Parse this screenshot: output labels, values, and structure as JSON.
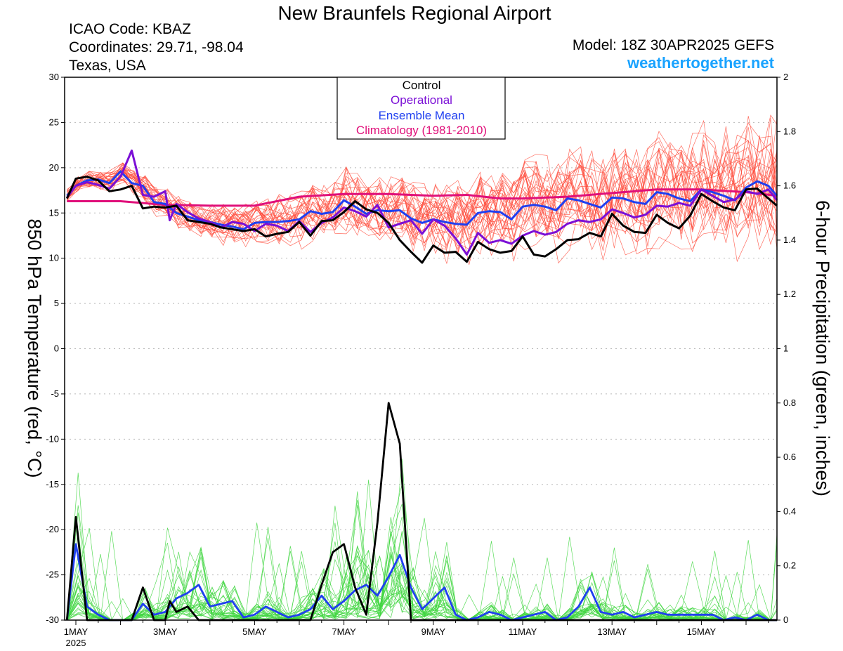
{
  "header": {
    "title": "New Braunfels Regional Airport",
    "icao": "ICAO Code: KBAZ",
    "coords": "Coordinates: 29.71, -98.04",
    "location": "Texas, USA",
    "model": "Model: 18Z 30APR2025 GEFS",
    "site": "weathertogether.net"
  },
  "colors": {
    "control": "#000000",
    "operational": "#7b0fd6",
    "ensemble_mean": "#1f3ff0",
    "climatology": "#e0107a",
    "members_temp": "#ff4a3a",
    "members_precip": "#3fd63f",
    "site": "#1aa3ff",
    "grid": "#b8b8b8"
  },
  "chart_data": {
    "type": "line",
    "xlabel": "",
    "ylabel_left": "850 hPa Temperature (red, °C)",
    "ylabel_right": "6-hour Precipitation (green, inches)",
    "y_left_lim": [
      -30,
      30
    ],
    "y_left_ticks": [
      30,
      25,
      20,
      15,
      10,
      5,
      0,
      -5,
      -10,
      -15,
      -20,
      -25,
      -30
    ],
    "y_right_lim": [
      0,
      2
    ],
    "y_right_ticks": [
      "2",
      "1.8",
      "1.6",
      "1.4",
      "1.2",
      "1",
      "0.8",
      "0.6",
      "0.4",
      "0.2",
      "0"
    ],
    "x_lim_days": [
      0.8,
      16.8
    ],
    "x_ticks": [
      {
        "day": 1,
        "label": "1MAY",
        "sub": "2025"
      },
      {
        "day": 3,
        "label": "3MAY"
      },
      {
        "day": 5,
        "label": "5MAY"
      },
      {
        "day": 7,
        "label": "7MAY"
      },
      {
        "day": 9,
        "label": "9MAY"
      },
      {
        "day": 11,
        "label": "11MAY"
      },
      {
        "day": 13,
        "label": "13MAY"
      },
      {
        "day": 15,
        "label": "15MAY"
      }
    ],
    "grid": "dotted horizontal",
    "legend": {
      "placement": "top-center",
      "entries": [
        "Control",
        "Operational",
        "Ensemble Mean",
        "Climatology (1981-2010)"
      ]
    },
    "series": {
      "temp_control": [
        [
          0.8,
          16.6
        ],
        [
          1.0,
          18.8
        ],
        [
          1.25,
          19.0
        ],
        [
          1.5,
          18.6
        ],
        [
          1.75,
          17.4
        ],
        [
          2.0,
          17.6
        ],
        [
          2.25,
          18.0
        ],
        [
          2.5,
          15.5
        ],
        [
          2.75,
          15.7
        ],
        [
          3.0,
          15.6
        ],
        [
          3.25,
          15.8
        ],
        [
          3.5,
          14.2
        ],
        [
          3.75,
          14.0
        ],
        [
          4.0,
          13.8
        ],
        [
          4.25,
          13.4
        ],
        [
          4.5,
          13.2
        ],
        [
          4.75,
          13.0
        ],
        [
          5.0,
          13.2
        ],
        [
          5.25,
          12.4
        ],
        [
          5.5,
          12.7
        ],
        [
          5.75,
          12.9
        ],
        [
          6.0,
          14.0
        ],
        [
          6.25,
          12.5
        ],
        [
          6.5,
          14.1
        ],
        [
          6.75,
          14.2
        ],
        [
          7.0,
          15.1
        ],
        [
          7.25,
          16.3
        ],
        [
          7.5,
          15.4
        ],
        [
          7.75,
          15.0
        ],
        [
          8.0,
          13.9
        ],
        [
          8.25,
          12.0
        ],
        [
          8.5,
          10.7
        ],
        [
          8.75,
          9.5
        ],
        [
          9.0,
          11.4
        ],
        [
          9.25,
          10.6
        ],
        [
          9.5,
          10.7
        ],
        [
          9.75,
          9.6
        ],
        [
          10.0,
          11.8
        ],
        [
          10.25,
          11.0
        ],
        [
          10.5,
          10.6
        ],
        [
          10.75,
          10.8
        ],
        [
          11.0,
          12.4
        ],
        [
          11.25,
          10.4
        ],
        [
          11.5,
          10.2
        ],
        [
          11.75,
          11.0
        ],
        [
          12.0,
          12.0
        ],
        [
          12.25,
          12.1
        ],
        [
          12.5,
          12.8
        ],
        [
          12.75,
          12.4
        ],
        [
          13.0,
          14.9
        ],
        [
          13.25,
          13.6
        ],
        [
          13.5,
          12.9
        ],
        [
          13.75,
          12.8
        ],
        [
          14.0,
          14.8
        ],
        [
          14.25,
          13.9
        ],
        [
          14.5,
          13.3
        ],
        [
          14.75,
          14.7
        ],
        [
          15.0,
          17.1
        ],
        [
          15.25,
          16.3
        ],
        [
          15.5,
          15.6
        ],
        [
          15.75,
          15.3
        ],
        [
          16.0,
          17.6
        ],
        [
          16.25,
          17.7
        ],
        [
          16.5,
          16.6
        ],
        [
          16.75,
          15.8
        ]
      ],
      "temp_operational": [
        [
          0.8,
          16.7
        ],
        [
          1.0,
          18.0
        ],
        [
          1.25,
          18.4
        ],
        [
          1.5,
          18.1
        ],
        [
          1.75,
          17.7
        ],
        [
          2.0,
          19.0
        ],
        [
          2.25,
          21.9
        ],
        [
          2.5,
          17.0
        ],
        [
          2.75,
          16.8
        ],
        [
          3.0,
          17.4
        ],
        [
          3.1,
          14.2
        ],
        [
          3.25,
          16.0
        ],
        [
          3.5,
          15.1
        ],
        [
          3.75,
          14.4
        ],
        [
          4.0,
          14.0
        ],
        [
          4.25,
          13.4
        ],
        [
          4.5,
          14.0
        ],
        [
          4.75,
          13.8
        ],
        [
          5.0,
          13.0
        ],
        [
          5.25,
          13.8
        ],
        [
          5.5,
          13.6
        ],
        [
          5.75,
          13.0
        ],
        [
          6.0,
          14.1
        ],
        [
          6.25,
          12.9
        ],
        [
          6.5,
          13.9
        ],
        [
          6.75,
          14.5
        ],
        [
          7.0,
          15.6
        ],
        [
          7.25,
          15.2
        ],
        [
          7.5,
          14.6
        ],
        [
          7.75,
          15.9
        ],
        [
          8.0,
          13.4
        ],
        [
          8.25,
          13.8
        ],
        [
          8.5,
          14.2
        ],
        [
          8.75,
          12.7
        ],
        [
          9.0,
          14.3
        ],
        [
          9.25,
          13.6
        ],
        [
          9.5,
          12.2
        ],
        [
          9.75,
          10.4
        ],
        [
          10.0,
          12.8
        ],
        [
          10.25,
          11.7
        ],
        [
          10.5,
          12.0
        ],
        [
          10.75,
          11.6
        ],
        [
          11.0,
          12.5
        ],
        [
          11.25,
          13.0
        ],
        [
          11.5,
          12.6
        ],
        [
          11.75,
          12.9
        ],
        [
          12.0,
          13.8
        ],
        [
          12.25,
          14.2
        ],
        [
          12.5,
          14.0
        ],
        [
          12.75,
          14.3
        ],
        [
          13.0,
          15.4
        ],
        [
          13.25,
          15.0
        ],
        [
          13.5,
          14.5
        ],
        [
          13.75,
          14.8
        ],
        [
          14.0,
          15.8
        ],
        [
          14.25,
          15.7
        ],
        [
          14.5,
          16.1
        ],
        [
          14.75,
          15.8
        ],
        [
          15.0,
          17.6
        ],
        [
          15.25,
          16.9
        ],
        [
          15.5,
          16.2
        ],
        [
          15.75,
          16.5
        ],
        [
          16.0,
          17.4
        ],
        [
          16.25,
          17.1
        ],
        [
          16.5,
          17.6
        ],
        [
          16.75,
          16.4
        ]
      ],
      "temp_ensemble_mean": [
        [
          0.8,
          16.9
        ],
        [
          1.0,
          18.0
        ],
        [
          1.25,
          18.6
        ],
        [
          1.5,
          18.7
        ],
        [
          1.75,
          18.3
        ],
        [
          2.0,
          19.6
        ],
        [
          2.25,
          18.3
        ],
        [
          2.5,
          18.0
        ],
        [
          2.75,
          16.2
        ],
        [
          3.0,
          16.0
        ],
        [
          3.25,
          15.0
        ],
        [
          3.5,
          14.6
        ],
        [
          3.75,
          14.2
        ],
        [
          4.0,
          14.0
        ],
        [
          4.25,
          13.7
        ],
        [
          4.5,
          13.5
        ],
        [
          4.75,
          13.2
        ],
        [
          5.0,
          13.9
        ],
        [
          5.25,
          14.0
        ],
        [
          5.5,
          14.0
        ],
        [
          5.75,
          14.1
        ],
        [
          6.0,
          14.3
        ],
        [
          6.25,
          15.2
        ],
        [
          6.5,
          14.9
        ],
        [
          6.75,
          15.1
        ],
        [
          7.0,
          16.4
        ],
        [
          7.25,
          15.7
        ],
        [
          7.5,
          14.9
        ],
        [
          7.75,
          15.3
        ],
        [
          8.0,
          15.2
        ],
        [
          8.25,
          15.3
        ],
        [
          8.5,
          14.4
        ],
        [
          8.75,
          13.9
        ],
        [
          9.0,
          14.3
        ],
        [
          9.25,
          14.0
        ],
        [
          9.5,
          13.8
        ],
        [
          9.75,
          13.7
        ],
        [
          10.0,
          15.0
        ],
        [
          10.25,
          15.2
        ],
        [
          10.5,
          15.1
        ],
        [
          10.75,
          14.3
        ],
        [
          11.0,
          15.7
        ],
        [
          11.25,
          15.9
        ],
        [
          11.5,
          15.7
        ],
        [
          11.75,
          15.3
        ],
        [
          12.0,
          16.6
        ],
        [
          12.25,
          16.4
        ],
        [
          12.5,
          16.0
        ],
        [
          12.75,
          15.6
        ],
        [
          13.0,
          16.7
        ],
        [
          13.25,
          16.6
        ],
        [
          13.5,
          16.2
        ],
        [
          13.75,
          16.0
        ],
        [
          14.0,
          17.3
        ],
        [
          14.25,
          17.1
        ],
        [
          14.5,
          16.6
        ],
        [
          14.75,
          16.3
        ],
        [
          15.0,
          17.6
        ],
        [
          15.25,
          17.3
        ],
        [
          15.5,
          16.9
        ],
        [
          15.75,
          16.4
        ],
        [
          16.0,
          17.8
        ],
        [
          16.25,
          18.5
        ],
        [
          16.5,
          18.0
        ],
        [
          16.75,
          16.9
        ]
      ],
      "temp_climatology": [
        [
          0.8,
          16.3
        ],
        [
          2.0,
          16.3
        ],
        [
          3.0,
          15.9
        ],
        [
          4.0,
          15.8
        ],
        [
          5.0,
          15.8
        ],
        [
          5.5,
          16.3
        ],
        [
          6.0,
          16.8
        ],
        [
          7.0,
          17.1
        ],
        [
          8.0,
          17.1
        ],
        [
          9.0,
          16.9
        ],
        [
          9.75,
          17.0
        ],
        [
          10.5,
          16.6
        ],
        [
          11.0,
          16.6
        ],
        [
          12.0,
          16.8
        ],
        [
          13.0,
          17.2
        ],
        [
          14.0,
          17.6
        ],
        [
          15.0,
          17.6
        ],
        [
          16.0,
          17.3
        ],
        [
          16.8,
          16.9
        ]
      ],
      "precip_control": [
        [
          0.8,
          0.0
        ],
        [
          1.0,
          0.38
        ],
        [
          1.25,
          0.0
        ],
        [
          1.5,
          0.0
        ],
        [
          1.75,
          0.0
        ],
        [
          2.0,
          0.0
        ],
        [
          2.25,
          0.0
        ],
        [
          2.5,
          0.12
        ],
        [
          2.75,
          0.0
        ],
        [
          3.0,
          0.0
        ],
        [
          3.1,
          0.07
        ],
        [
          3.25,
          0.03
        ],
        [
          3.5,
          0.05
        ],
        [
          3.75,
          0.0
        ],
        [
          4.0,
          0.0
        ],
        [
          4.25,
          0.0
        ],
        [
          4.5,
          0.0
        ],
        [
          4.75,
          0.0
        ],
        [
          5.0,
          0.0
        ],
        [
          5.25,
          0.0
        ],
        [
          5.5,
          0.0
        ],
        [
          5.75,
          0.0
        ],
        [
          6.0,
          0.0
        ],
        [
          6.25,
          0.0
        ],
        [
          6.5,
          0.13
        ],
        [
          6.75,
          0.25
        ],
        [
          7.0,
          0.28
        ],
        [
          7.25,
          0.12
        ],
        [
          7.5,
          0.02
        ],
        [
          7.75,
          0.36
        ],
        [
          8.0,
          0.8
        ],
        [
          8.25,
          0.65
        ],
        [
          8.5,
          0.0
        ],
        [
          16.8,
          0.0
        ]
      ],
      "precip_ensemble_mean": [
        [
          0.8,
          0.0
        ],
        [
          1.0,
          0.28
        ],
        [
          1.25,
          0.05
        ],
        [
          1.5,
          0.02
        ],
        [
          1.75,
          0.0
        ],
        [
          2.0,
          0.0
        ],
        [
          2.25,
          0.0
        ],
        [
          2.5,
          0.06
        ],
        [
          2.75,
          0.02
        ],
        [
          3.0,
          0.03
        ],
        [
          3.25,
          0.08
        ],
        [
          3.5,
          0.1
        ],
        [
          3.75,
          0.13
        ],
        [
          4.0,
          0.05
        ],
        [
          4.25,
          0.06
        ],
        [
          4.5,
          0.07
        ],
        [
          4.75,
          0.01
        ],
        [
          5.0,
          0.02
        ],
        [
          5.25,
          0.05
        ],
        [
          5.5,
          0.03
        ],
        [
          5.75,
          0.01
        ],
        [
          6.0,
          0.02
        ],
        [
          6.25,
          0.04
        ],
        [
          6.5,
          0.09
        ],
        [
          6.75,
          0.04
        ],
        [
          7.0,
          0.07
        ],
        [
          7.25,
          0.11
        ],
        [
          7.5,
          0.13
        ],
        [
          7.75,
          0.09
        ],
        [
          8.0,
          0.16
        ],
        [
          8.25,
          0.24
        ],
        [
          8.5,
          0.12
        ],
        [
          8.75,
          0.04
        ],
        [
          9.0,
          0.08
        ],
        [
          9.25,
          0.12
        ],
        [
          9.5,
          0.02
        ],
        [
          9.75,
          0.0
        ],
        [
          10.0,
          0.01
        ],
        [
          10.25,
          0.03
        ],
        [
          10.5,
          0.02
        ],
        [
          10.75,
          0.0
        ],
        [
          11.0,
          0.01
        ],
        [
          11.25,
          0.02
        ],
        [
          11.5,
          0.03
        ],
        [
          11.75,
          0.0
        ],
        [
          12.0,
          0.01
        ],
        [
          12.25,
          0.05
        ],
        [
          12.5,
          0.12
        ],
        [
          12.75,
          0.03
        ],
        [
          13.0,
          0.02
        ],
        [
          13.25,
          0.03
        ],
        [
          13.5,
          0.01
        ],
        [
          13.75,
          0.02
        ],
        [
          14.0,
          0.03
        ],
        [
          14.25,
          0.02
        ],
        [
          14.5,
          0.02
        ],
        [
          14.75,
          0.02
        ],
        [
          15.0,
          0.02
        ],
        [
          15.25,
          0.02
        ],
        [
          15.5,
          0.0
        ],
        [
          15.75,
          0.01
        ],
        [
          16.0,
          0.0
        ],
        [
          16.25,
          0.02
        ],
        [
          16.5,
          0.0
        ],
        [
          16.8,
          0.0
        ]
      ]
    }
  }
}
